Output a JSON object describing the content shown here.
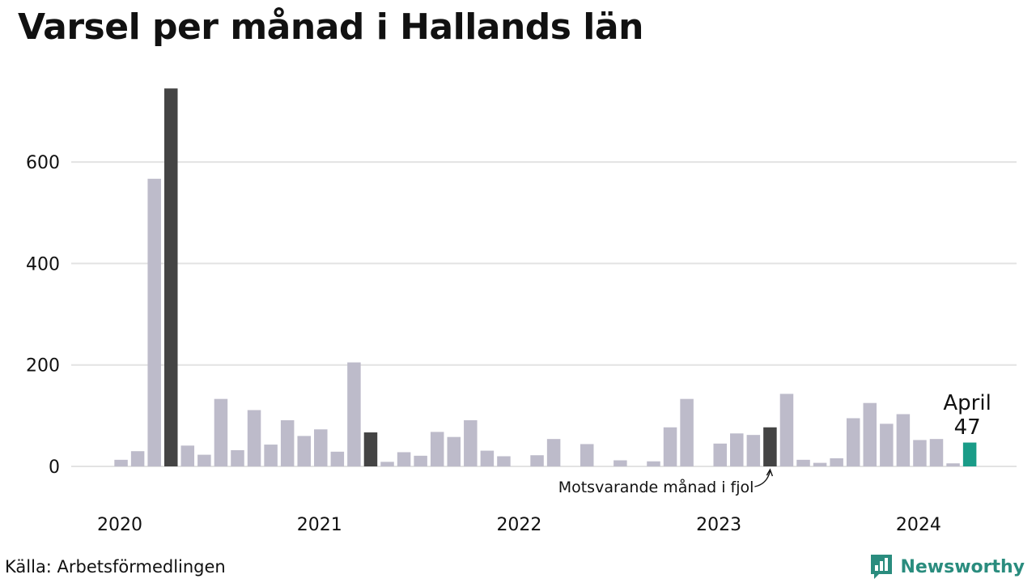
{
  "title": "Varsel per månad i Hallands län",
  "source": "Källa: Arbetsförmedlingen",
  "logo": {
    "text": "Newsworthy",
    "icon": "newsworthy-chart-icon"
  },
  "colors": {
    "bar": "#bdbbca",
    "same_month": "#444444",
    "latest": "#1a9c88",
    "grid": "#e3e3e3",
    "logo": "#2a8c7e"
  },
  "chart_data": {
    "type": "bar",
    "x_tick_labels": [
      "2020",
      "2021",
      "2022",
      "2023",
      "2024"
    ],
    "y_ticks": [
      0,
      200,
      400,
      600
    ],
    "ylim": [
      0,
      750
    ],
    "grid": true,
    "series": [
      {
        "values": [
          0,
          13,
          30,
          567,
          745,
          41,
          23,
          133,
          32,
          111,
          43,
          91,
          60,
          73,
          29,
          205,
          67,
          9,
          28,
          21,
          68,
          58,
          91,
          31,
          20,
          0,
          22,
          54,
          0,
          44,
          0,
          12,
          0,
          10,
          77,
          133,
          0,
          45,
          65,
          62,
          77,
          143,
          13,
          7,
          16,
          95,
          125,
          84,
          103,
          52,
          54,
          6,
          47
        ],
        "highlight_same_month": [
          4,
          16,
          40
        ],
        "highlight_latest": 52
      }
    ],
    "annotations": [
      {
        "text": "Motsvarande månad i fjol",
        "target_index": 40
      },
      {
        "lines": [
          "April",
          "47"
        ],
        "target_index": 52
      }
    ]
  }
}
